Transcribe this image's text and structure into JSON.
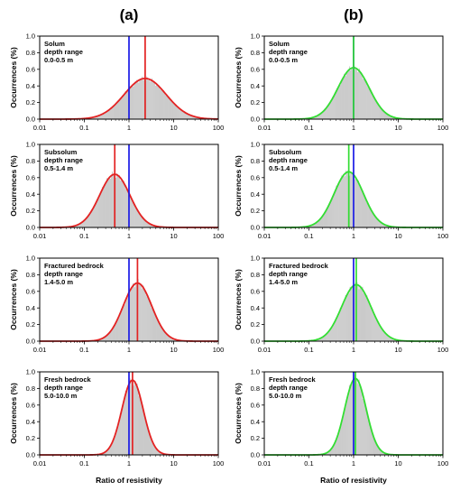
{
  "figure": {
    "column_labels": [
      "(a)",
      "(b)"
    ],
    "ylabel": "Occurrences (%)",
    "xlabel": "Ratio of resistivity"
  },
  "chart_data": [
    {
      "type": "histogram-fit",
      "column": "(a)",
      "row": 1,
      "label_lines": [
        "Solum",
        "depth range",
        "0.0-0.5 m"
      ],
      "x_scale": "log",
      "xlim": [
        0.01,
        100
      ],
      "x_ticks": [
        "0.01",
        "0.1",
        "1",
        "10",
        "100"
      ],
      "ylim": [
        0,
        1.0
      ],
      "y_ticks": [
        "0.0",
        "0.2",
        "0.4",
        "0.6",
        "0.8",
        "1.0"
      ],
      "fit": {
        "color": "#e32222",
        "peak_x": 2.3,
        "peak_y": 0.49,
        "spread_decades": 0.47
      },
      "vlines": [
        {
          "x": 1.0,
          "color": "#1a1ae6"
        },
        {
          "x": 2.3,
          "color": "#e32222"
        }
      ]
    },
    {
      "type": "histogram-fit",
      "column": "(b)",
      "row": 1,
      "label_lines": [
        "Solum",
        "depth range",
        "0.0-0.5 m"
      ],
      "x_scale": "log",
      "xlim": [
        0.01,
        100
      ],
      "x_ticks": [
        "0.01",
        "0.1",
        "1",
        "10",
        "100"
      ],
      "ylim": [
        0,
        1.0
      ],
      "y_ticks": [
        "0.0",
        "0.2",
        "0.4",
        "0.6",
        "0.8",
        "1.0"
      ],
      "fit": {
        "color": "#33dd33",
        "peak_x": 1.0,
        "peak_y": 0.62,
        "spread_decades": 0.35
      },
      "vlines": [
        {
          "x": 1.0,
          "color": "#1a1ae6"
        },
        {
          "x": 1.0,
          "color": "#33dd33"
        }
      ]
    },
    {
      "type": "histogram-fit",
      "column": "(a)",
      "row": 2,
      "label_lines": [
        "Subsolum",
        "depth range",
        "0.5-1.4 m"
      ],
      "x_scale": "log",
      "xlim": [
        0.01,
        100
      ],
      "x_ticks": [
        "0.01",
        "0.1",
        "1",
        "10",
        "100"
      ],
      "ylim": [
        0,
        1.0
      ],
      "y_ticks": [
        "0.0",
        "0.2",
        "0.4",
        "0.6",
        "0.8",
        "1.0"
      ],
      "fit": {
        "color": "#e32222",
        "peak_x": 0.48,
        "peak_y": 0.64,
        "spread_decades": 0.34
      },
      "vlines": [
        {
          "x": 1.0,
          "color": "#1a1ae6"
        },
        {
          "x": 0.48,
          "color": "#e32222"
        }
      ]
    },
    {
      "type": "histogram-fit",
      "column": "(b)",
      "row": 2,
      "label_lines": [
        "Subsolum",
        "depth range",
        "0.5-1.4 m"
      ],
      "x_scale": "log",
      "xlim": [
        0.01,
        100
      ],
      "x_ticks": [
        "0.01",
        "0.1",
        "1",
        "10",
        "100"
      ],
      "ylim": [
        0,
        1.0
      ],
      "y_ticks": [
        "0.0",
        "0.2",
        "0.4",
        "0.6",
        "0.8",
        "1.0"
      ],
      "fit": {
        "color": "#33dd33",
        "peak_x": 0.78,
        "peak_y": 0.67,
        "spread_decades": 0.33
      },
      "vlines": [
        {
          "x": 1.0,
          "color": "#1a1ae6"
        },
        {
          "x": 0.78,
          "color": "#33dd33"
        }
      ]
    },
    {
      "type": "histogram-fit",
      "column": "(a)",
      "row": 3,
      "label_lines": [
        "Fractured bedrock",
        "depth range",
        "1.4-5.0 m"
      ],
      "x_scale": "log",
      "xlim": [
        0.01,
        100
      ],
      "x_ticks": [
        "0.01",
        "0.1",
        "1",
        "10",
        "100"
      ],
      "ylim": [
        0,
        1.0
      ],
      "y_ticks": [
        "0.0",
        "0.2",
        "0.4",
        "0.6",
        "0.8",
        "1.0"
      ],
      "fit": {
        "color": "#e32222",
        "peak_x": 1.55,
        "peak_y": 0.7,
        "spread_decades": 0.32
      },
      "vlines": [
        {
          "x": 1.0,
          "color": "#1a1ae6"
        },
        {
          "x": 1.55,
          "color": "#e32222"
        }
      ]
    },
    {
      "type": "histogram-fit",
      "column": "(b)",
      "row": 3,
      "label_lines": [
        "Fractured bedrock",
        "depth range",
        "1.4-5.0 m"
      ],
      "x_scale": "log",
      "xlim": [
        0.01,
        100
      ],
      "x_ticks": [
        "0.01",
        "0.1",
        "1",
        "10",
        "100"
      ],
      "ylim": [
        0,
        1.0
      ],
      "y_ticks": [
        "0.0",
        "0.2",
        "0.4",
        "0.6",
        "0.8",
        "1.0"
      ],
      "fit": {
        "color": "#33dd33",
        "peak_x": 1.15,
        "peak_y": 0.68,
        "spread_decades": 0.33
      },
      "vlines": [
        {
          "x": 1.0,
          "color": "#1a1ae6"
        },
        {
          "x": 1.15,
          "color": "#33dd33"
        }
      ]
    },
    {
      "type": "histogram-fit",
      "column": "(a)",
      "row": 4,
      "label_lines": [
        "Fresh bedrock",
        "depth range",
        "5.0-10.0 m"
      ],
      "x_scale": "log",
      "xlim": [
        0.01,
        100
      ],
      "x_ticks": [
        "0.01",
        "0.1",
        "1",
        "10",
        "100"
      ],
      "ylim": [
        0,
        1.0
      ],
      "y_ticks": [
        "0.0",
        "0.2",
        "0.4",
        "0.6",
        "0.8",
        "1.0"
      ],
      "fit": {
        "color": "#e32222",
        "peak_x": 1.2,
        "peak_y": 0.9,
        "spread_decades": 0.24
      },
      "vlines": [
        {
          "x": 1.0,
          "color": "#1a1ae6"
        },
        {
          "x": 1.2,
          "color": "#e32222"
        }
      ]
    },
    {
      "type": "histogram-fit",
      "column": "(b)",
      "row": 4,
      "label_lines": [
        "Fresh bedrock",
        "depth range",
        "5.0-10.0 m"
      ],
      "x_scale": "log",
      "xlim": [
        0.01,
        100
      ],
      "x_ticks": [
        "0.01",
        "0.1",
        "1",
        "10",
        "100"
      ],
      "ylim": [
        0,
        1.0
      ],
      "y_ticks": [
        "0.0",
        "0.2",
        "0.4",
        "0.6",
        "0.8",
        "1.0"
      ],
      "fit": {
        "color": "#33dd33",
        "peak_x": 1.1,
        "peak_y": 0.92,
        "spread_decades": 0.24
      },
      "vlines": [
        {
          "x": 1.0,
          "color": "#1a1ae6"
        },
        {
          "x": 1.1,
          "color": "#33dd33"
        }
      ]
    }
  ]
}
